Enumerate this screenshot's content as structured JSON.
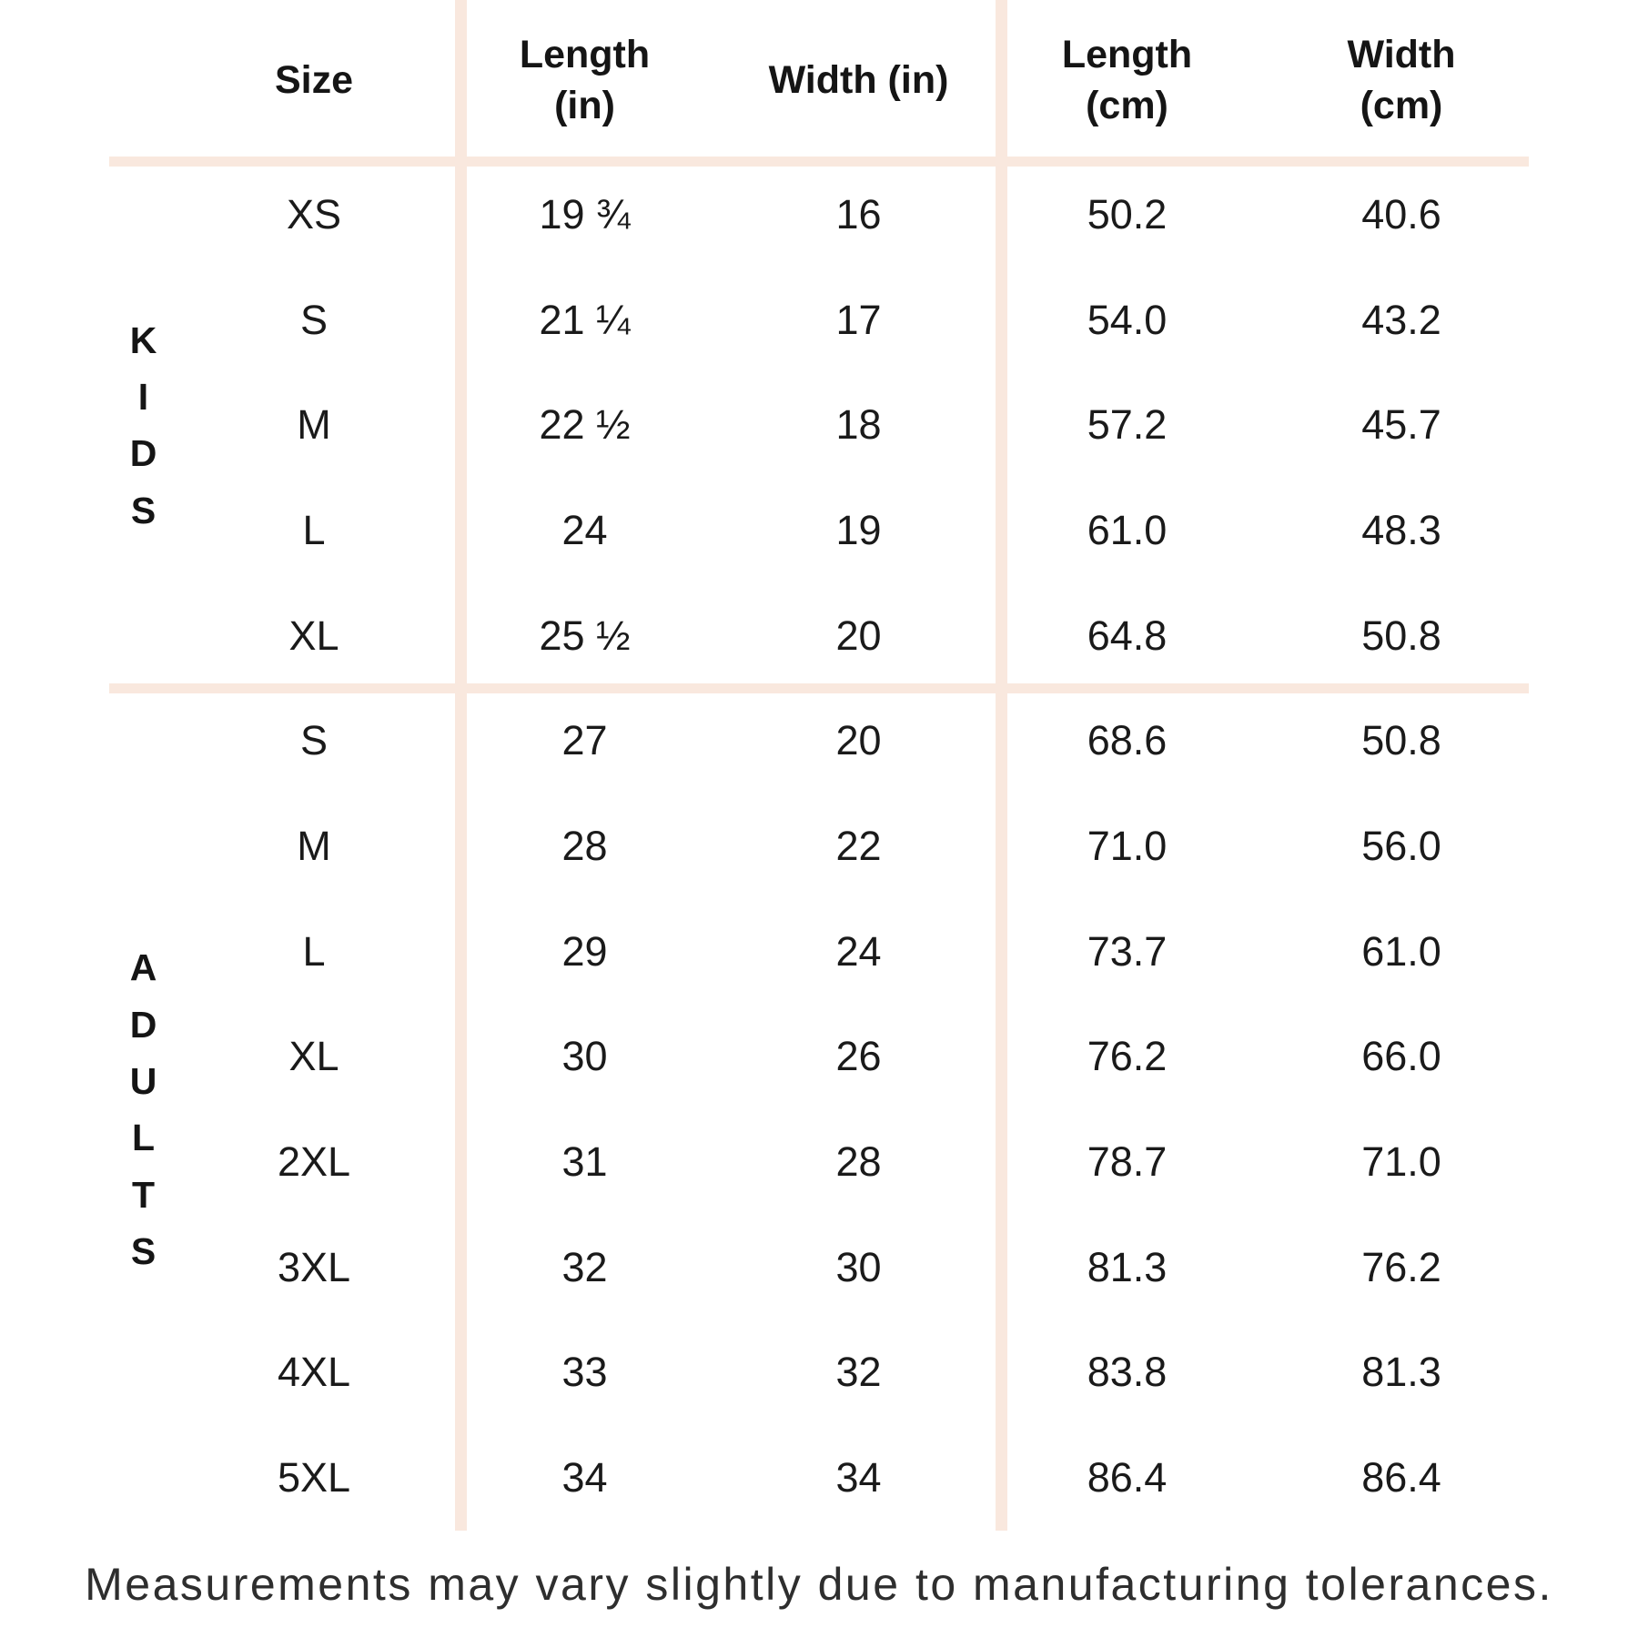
{
  "chart_data": {
    "type": "table",
    "columns": [
      "Size",
      "Length (in)",
      "Width (in)",
      "Length (cm)",
      "Width (cm)"
    ],
    "headers_display": [
      "Size",
      "Length\n(in)",
      "Width (in)",
      "Length\n(cm)",
      "Width\n(cm)"
    ],
    "row_groups": [
      {
        "label": "KIDS",
        "label_stacked": "K\nI\nD\nS",
        "rows": [
          [
            "XS",
            "19 ¾",
            "16",
            "50.2",
            "40.6"
          ],
          [
            "S",
            "21 ¼",
            "17",
            "54.0",
            "43.2"
          ],
          [
            "M",
            "22 ½",
            "18",
            "57.2",
            "45.7"
          ],
          [
            "L",
            "24",
            "19",
            "61.0",
            "48.3"
          ],
          [
            "XL",
            "25 ½",
            "20",
            "64.8",
            "50.8"
          ]
        ]
      },
      {
        "label": "ADULTS",
        "label_stacked": "A\nD\nU\nL\nT\nS",
        "rows": [
          [
            "S",
            "27",
            "20",
            "68.6",
            "50.8"
          ],
          [
            "M",
            "28",
            "22",
            "71.0",
            "56.0"
          ],
          [
            "L",
            "29",
            "24",
            "73.7",
            "61.0"
          ],
          [
            "XL",
            "30",
            "26",
            "76.2",
            "66.0"
          ],
          [
            "2XL",
            "31",
            "28",
            "78.7",
            "71.0"
          ],
          [
            "3XL",
            "32",
            "30",
            "81.3",
            "76.2"
          ],
          [
            "4XL",
            "33",
            "32",
            "83.8",
            "81.3"
          ],
          [
            "5XL",
            "34",
            "34",
            "86.4",
            "86.4"
          ]
        ]
      }
    ],
    "layout_hints": {
      "grid": "two vertical and two horizontal pale peach divider lines",
      "legend_position": "none"
    }
  },
  "footer": {
    "note": "Measurements may vary slightly due to manufacturing tolerances."
  },
  "colors": {
    "background": "#ffffff",
    "divider": "#f9e8de",
    "text": "#1a1a1a"
  }
}
